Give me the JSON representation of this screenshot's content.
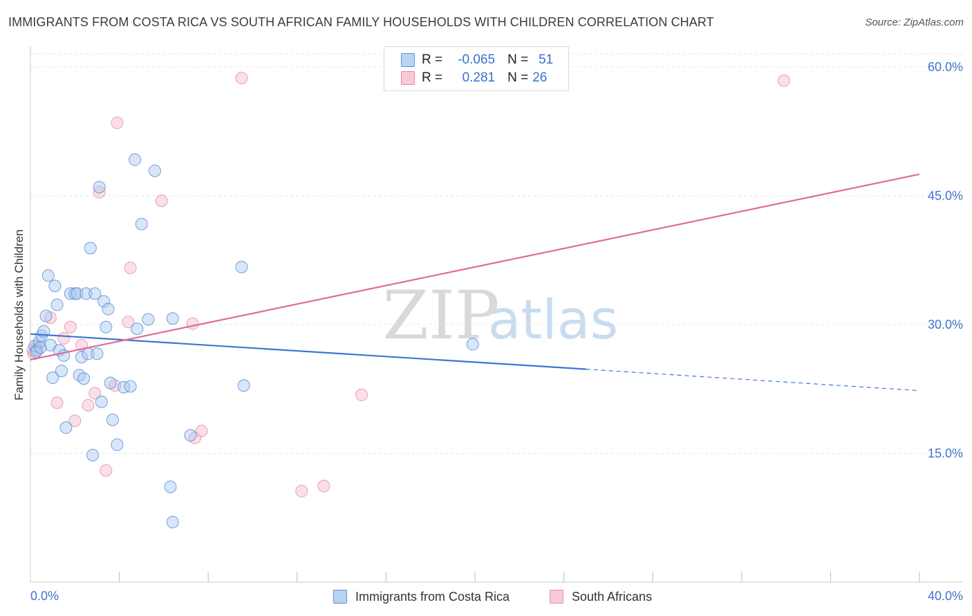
{
  "title": "IMMIGRANTS FROM COSTA RICA VS SOUTH AFRICAN FAMILY HOUSEHOLDS WITH CHILDREN CORRELATION CHART",
  "source": "Source: ZipAtlas.com",
  "watermark": {
    "zip": "ZIP",
    "atlas": "atlas"
  },
  "legend": {
    "r_label": "R =",
    "n_label": "N =",
    "series": [
      {
        "r": "-0.065",
        "n": "51"
      },
      {
        "r": "0.281",
        "n": "26"
      }
    ]
  },
  "bottom_legend": [
    "Immigrants from Costa Rica",
    "South Africans"
  ],
  "colors": {
    "blue_fill": "#a9c8f0",
    "blue_stroke": "#5a8fd8",
    "blue_line": "#3b76d4",
    "pink_fill": "#f6b9cc",
    "pink_stroke": "#e58aa8",
    "pink_line": "#e06a96",
    "axis_text": "#3f74cf",
    "grid": "#e6e6e6"
  },
  "chart_data": {
    "type": "scatter",
    "title": "IMMIGRANTS FROM COSTA RICA VS SOUTH AFRICAN FAMILY HOUSEHOLDS WITH CHILDREN CORRELATION CHART",
    "xlabel": "",
    "ylabel": "Family Households with Children",
    "xlim": [
      0,
      40
    ],
    "ylim": [
      0,
      62
    ],
    "x_tick_labels": [
      "0.0%",
      "40.0%"
    ],
    "y_ticks": [
      15,
      30,
      45,
      60
    ],
    "y_tick_labels": [
      "15.0%",
      "30.0%",
      "45.0%",
      "60.0%"
    ],
    "grid": true,
    "legend_position": "top-center",
    "series": [
      {
        "name": "Immigrants from Costa Rica",
        "r": -0.065,
        "n": 51,
        "trend": {
          "x": [
            0,
            25,
            40
          ],
          "y": [
            28.9,
            24.8,
            22.3
          ],
          "solid_until": 25
        },
        "points": [
          [
            0.2,
            27.5
          ],
          [
            0.3,
            27.0
          ],
          [
            0.4,
            28.0
          ],
          [
            0.5,
            28.7
          ],
          [
            0.6,
            29.2
          ],
          [
            0.7,
            31.0
          ],
          [
            0.8,
            35.7
          ],
          [
            0.9,
            27.6
          ],
          [
            1.0,
            23.8
          ],
          [
            1.1,
            34.5
          ],
          [
            1.2,
            32.3
          ],
          [
            1.3,
            27.0
          ],
          [
            1.4,
            24.6
          ],
          [
            1.5,
            26.4
          ],
          [
            1.6,
            18.0
          ],
          [
            1.8,
            33.6
          ],
          [
            2.0,
            33.6
          ],
          [
            2.1,
            33.6
          ],
          [
            2.2,
            24.1
          ],
          [
            2.3,
            26.2
          ],
          [
            2.4,
            23.7
          ],
          [
            2.5,
            33.6
          ],
          [
            2.6,
            26.6
          ],
          [
            2.7,
            38.9
          ],
          [
            2.8,
            14.8
          ],
          [
            2.9,
            33.6
          ],
          [
            3.0,
            26.6
          ],
          [
            3.1,
            46.0
          ],
          [
            3.2,
            21.0
          ],
          [
            3.3,
            32.7
          ],
          [
            3.4,
            29.7
          ],
          [
            3.5,
            31.8
          ],
          [
            3.6,
            23.2
          ],
          [
            3.7,
            18.9
          ],
          [
            3.9,
            16.0
          ],
          [
            4.2,
            22.7
          ],
          [
            4.5,
            22.8
          ],
          [
            4.7,
            49.2
          ],
          [
            4.8,
            29.5
          ],
          [
            5.0,
            41.7
          ],
          [
            5.3,
            30.6
          ],
          [
            5.6,
            47.9
          ],
          [
            6.3,
            11.1
          ],
          [
            6.4,
            7.0
          ],
          [
            6.4,
            30.7
          ],
          [
            7.2,
            17.1
          ],
          [
            9.5,
            36.7
          ],
          [
            9.6,
            22.9
          ],
          [
            19.9,
            27.7
          ],
          [
            0.25,
            26.8
          ],
          [
            0.45,
            27.3
          ]
        ]
      },
      {
        "name": "South Africans",
        "r": 0.281,
        "n": 26,
        "trend": {
          "x": [
            0,
            40
          ],
          "y": [
            25.9,
            47.5
          ]
        },
        "points": [
          [
            0.1,
            27.0
          ],
          [
            0.3,
            27.4
          ],
          [
            0.9,
            30.8
          ],
          [
            1.2,
            20.9
          ],
          [
            1.5,
            28.4
          ],
          [
            1.8,
            29.7
          ],
          [
            2.0,
            18.8
          ],
          [
            2.3,
            27.6
          ],
          [
            2.6,
            20.6
          ],
          [
            2.9,
            22.0
          ],
          [
            3.1,
            45.4
          ],
          [
            3.4,
            13.0
          ],
          [
            3.8,
            22.9
          ],
          [
            3.9,
            53.5
          ],
          [
            4.4,
            30.3
          ],
          [
            4.5,
            36.6
          ],
          [
            5.9,
            44.4
          ],
          [
            7.3,
            30.1
          ],
          [
            7.4,
            16.8
          ],
          [
            7.7,
            17.6
          ],
          [
            9.5,
            58.7
          ],
          [
            12.2,
            10.6
          ],
          [
            13.2,
            11.2
          ],
          [
            14.9,
            21.8
          ],
          [
            33.9,
            58.4
          ],
          [
            0.15,
            26.6
          ]
        ]
      }
    ]
  }
}
